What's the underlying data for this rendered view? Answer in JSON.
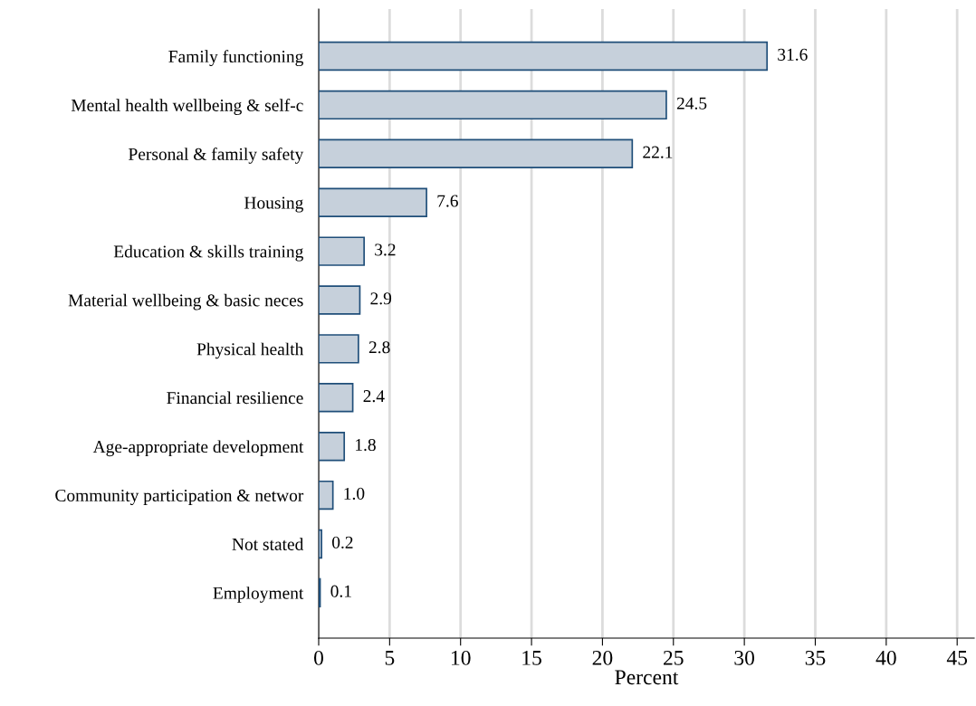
{
  "chart_data": {
    "type": "bar",
    "orientation": "horizontal",
    "xlabel": "Percent",
    "categories": [
      "Family functioning",
      "Mental health wellbeing & self-c",
      "Personal & family safety",
      "Housing",
      "Education & skills training",
      "Material wellbeing & basic neces",
      "Physical health",
      "Financial resilience",
      "Age-appropriate development",
      "Community participation & networ",
      "Not stated",
      "Employment"
    ],
    "values": [
      31.6,
      24.5,
      22.1,
      7.6,
      3.2,
      2.9,
      2.8,
      2.4,
      1.8,
      1.0,
      0.2,
      0.1
    ],
    "value_labels": [
      "31.6",
      "24.5",
      "22.1",
      "7.6",
      "3.2",
      "2.9",
      "2.8",
      "2.4",
      "1.8",
      "1.0",
      "0.2",
      "0.1"
    ],
    "color": "#c6d0db",
    "xlim": [
      0,
      46.2
    ],
    "xticks": [
      0,
      5,
      10,
      15,
      20,
      25,
      30,
      35,
      40,
      45
    ],
    "grid": "x",
    "legend": false
  }
}
